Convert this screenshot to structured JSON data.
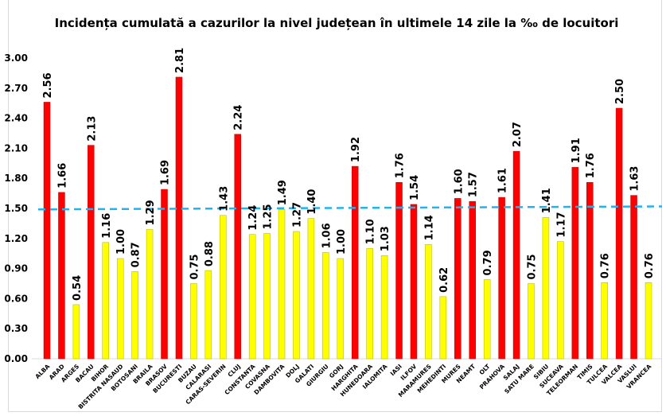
{
  "chart_data": {
    "type": "bar",
    "title": "Incidența cumulată a cazurilor la nivel județean în ultimele 14 zile la ‰ de locuitori",
    "xlabel": "",
    "ylabel": "",
    "ylim": [
      0,
      3.0
    ],
    "yticks": [
      "0.00",
      "0.30",
      "0.60",
      "0.90",
      "1.20",
      "1.50",
      "1.80",
      "2.10",
      "2.40",
      "2.70",
      "3.00"
    ],
    "grid": false,
    "legend": "none",
    "categories": [
      "ALBA",
      "ARAD",
      "ARGES",
      "BACAU",
      "BIHOR",
      "BISTRITA NASAUD",
      "BOTOSANI",
      "BRAILA",
      "BRASOV",
      "BUCURESTI",
      "BUZAU",
      "CALARASI",
      "CARAS-SEVERIN",
      "CLUJ",
      "CONSTANTA",
      "COVASNA",
      "DAMBOVITA",
      "DOLJ",
      "GALATI",
      "GIURGIU",
      "GORJ",
      "HARGHITA",
      "HUNEDOARA",
      "IALOMITA",
      "IASI",
      "ILFOV",
      "MARAMURES",
      "MEHEDINTI",
      "MURES",
      "NEAMT",
      "OLT",
      "PRAHOVA",
      "SALAJ",
      "SATU MARE",
      "SIBIU",
      "SUCEAVA",
      "TELEORMAN",
      "TIMIS",
      "TULCEA",
      "VALCEA",
      "VASLUI",
      "VRANCEA"
    ],
    "values": [
      2.56,
      1.66,
      0.54,
      2.13,
      1.16,
      1.0,
      0.87,
      1.29,
      1.69,
      2.81,
      0.75,
      0.88,
      1.43,
      2.24,
      1.24,
      1.25,
      1.49,
      1.27,
      1.4,
      1.06,
      1.0,
      1.92,
      1.1,
      1.03,
      1.76,
      1.54,
      1.14,
      0.62,
      1.6,
      1.57,
      0.79,
      1.61,
      2.07,
      0.75,
      1.41,
      1.17,
      1.91,
      1.76,
      0.76,
      2.5,
      1.63,
      0.76
    ],
    "value_labels": [
      "2.56",
      "1.66",
      "0.54",
      "2.13",
      "1.16",
      "1.00",
      "0.87",
      "1.29",
      "1.69",
      "2.81",
      "0.75",
      "0.88",
      "1.43",
      "2.24",
      "1.24",
      "1.25",
      "1.49",
      "1.27",
      "1.40",
      "1.06",
      "1.00",
      "1.92",
      "1.10",
      "1.03",
      "1.76",
      "1.54",
      "1.14",
      "0.62",
      "1.60",
      "1.57",
      "0.79",
      "1.61",
      "2.07",
      "0.75",
      "1.41",
      "1.17",
      "1.91",
      "1.76",
      "0.76",
      "2.50",
      "1.63",
      "0.76"
    ],
    "highlight_threshold": 1.5,
    "colors": {
      "above": "#ff0000",
      "below": "#ffff00",
      "reference_line": "#1fb4f0"
    },
    "reference_line": {
      "start": 1.49,
      "end": 1.52,
      "style": "dashed"
    }
  }
}
